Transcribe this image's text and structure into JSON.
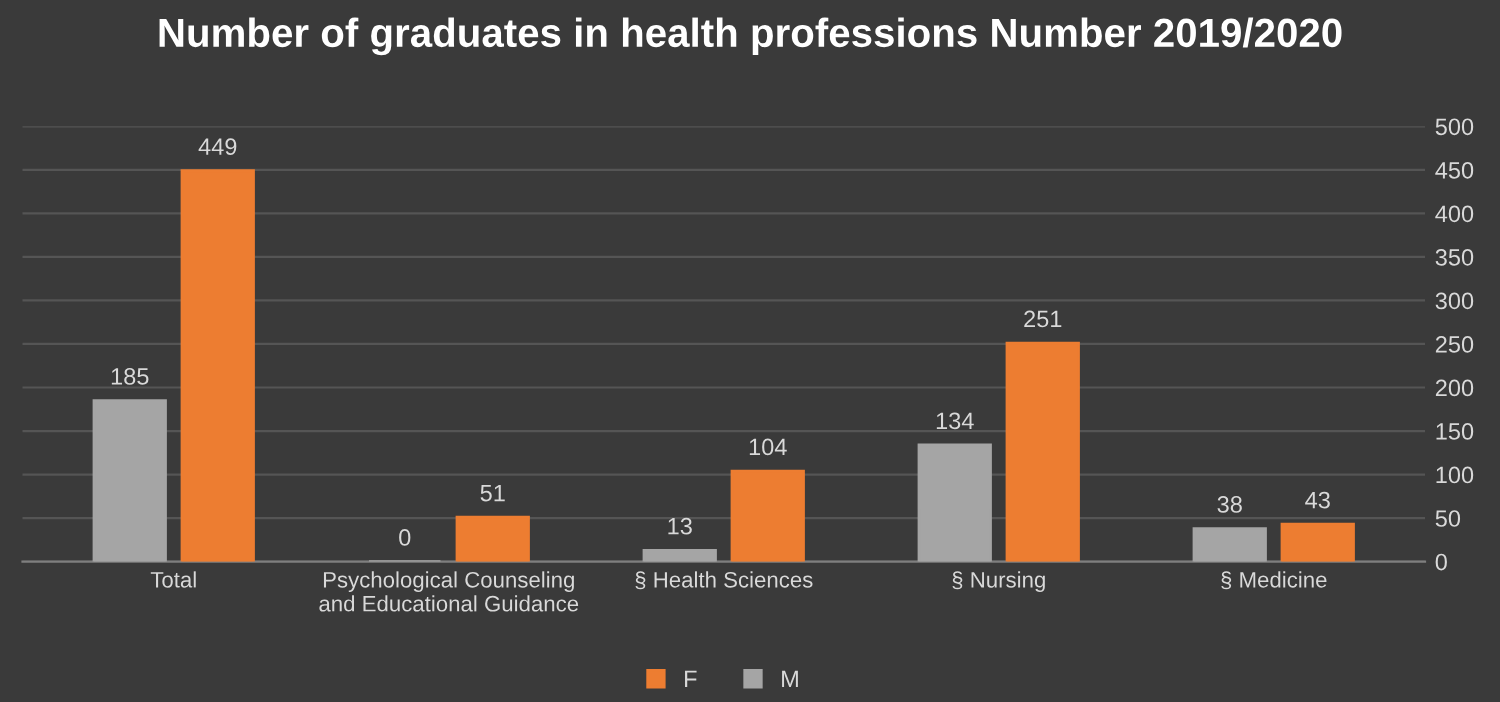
{
  "chart_data": {
    "type": "bar",
    "title": "Number of graduates in health professions Number 2019/2020",
    "categories": [
      "Total",
      "Psychological Counseling\nand Educational Guidance",
      "§ Health Sciences",
      "§ Nursing",
      "§ Medicine"
    ],
    "series": [
      {
        "name": "M",
        "color": "#a5a5a5",
        "values": [
          185,
          0,
          13,
          134,
          38
        ]
      },
      {
        "name": "F",
        "color": "#ed7d31",
        "values": [
          449,
          51,
          104,
          251,
          43
        ]
      }
    ],
    "ylim": [
      0,
      500
    ],
    "yticks": [
      0,
      50,
      100,
      150,
      200,
      250,
      300,
      350,
      400,
      450,
      500
    ],
    "grid": "y",
    "legend": "bottom",
    "data_labels": true
  }
}
